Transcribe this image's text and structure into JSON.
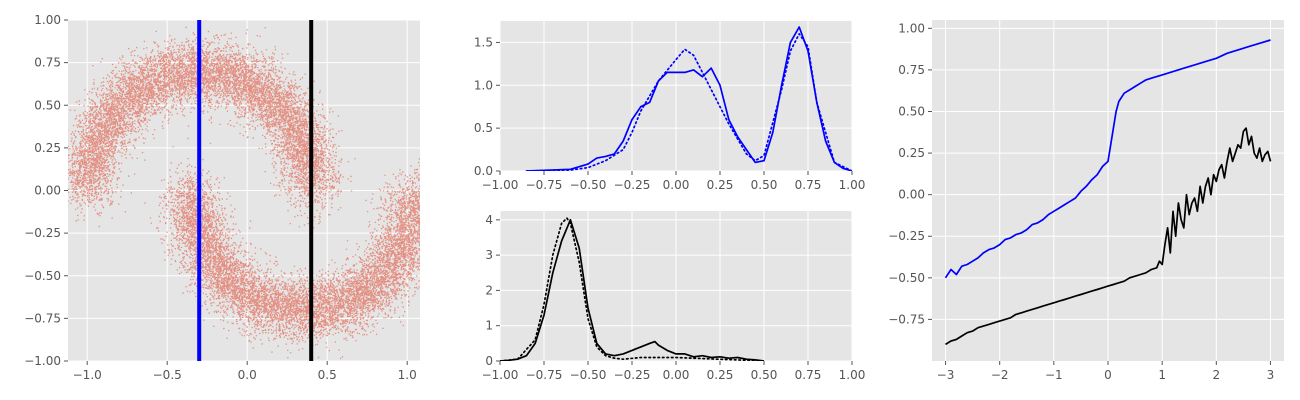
{
  "colors": {
    "panel_bg": "#e5e5e5",
    "grid": "#ffffff",
    "scatter": "#e24a33",
    "blue": "#0000ff",
    "black": "#000000",
    "tick_text": "#555555"
  },
  "chart_data": [
    {
      "id": "scatter",
      "type": "scatter",
      "xlim": [
        -1.12,
        1.08
      ],
      "ylim": [
        -1.0,
        1.0
      ],
      "xticks": [
        -1.0,
        -0.5,
        0.0,
        0.5,
        1.0
      ],
      "xtick_labels": [
        "−1.0",
        "−0.5",
        "0.0",
        "0.5",
        "1.0"
      ],
      "yticks": [
        -1.0,
        -0.75,
        -0.5,
        -0.25,
        0.0,
        0.25,
        0.5,
        0.75,
        1.0
      ],
      "ytick_labels": [
        "−1.00",
        "−0.75",
        "−0.50",
        "−0.25",
        "0.00",
        "0.25",
        "0.50",
        "0.75",
        "1.00"
      ],
      "grid": true,
      "description_shape": "two interleaved half-moons",
      "moons": [
        {
          "center": [
            -0.3,
            0.0
          ],
          "radius": 0.7,
          "arc": "upper",
          "noise": 0.09
        },
        {
          "center": [
            0.35,
            0.0
          ],
          "radius": 0.7,
          "arc": "lower",
          "noise": 0.09
        }
      ],
      "vlines": [
        {
          "x": -0.3,
          "color": "#0000ff"
        },
        {
          "x": 0.4,
          "color": "#000000"
        }
      ]
    },
    {
      "id": "density-top",
      "type": "line",
      "xlim": [
        -1.0,
        1.0
      ],
      "ylim": [
        0,
        1.75
      ],
      "xticks": [
        -1.0,
        -0.75,
        -0.5,
        -0.25,
        0.0,
        0.25,
        0.5,
        0.75,
        1.0
      ],
      "xtick_labels": [
        "−1.00",
        "−0.75",
        "−0.50",
        "−0.25",
        "0.00",
        "0.25",
        "0.50",
        "0.75",
        "1.00"
      ],
      "yticks": [
        0.0,
        0.5,
        1.0,
        1.5
      ],
      "ytick_labels": [
        "0.0",
        "0.5",
        "1.0",
        "1.5"
      ],
      "grid": true,
      "series": [
        {
          "style": "solid",
          "color": "#0000ff",
          "x": [
            -0.85,
            -0.6,
            -0.5,
            -0.45,
            -0.4,
            -0.35,
            -0.3,
            -0.25,
            -0.2,
            -0.15,
            -0.1,
            -0.05,
            0.0,
            0.05,
            0.1,
            0.15,
            0.2,
            0.25,
            0.3,
            0.35,
            0.4,
            0.45,
            0.5,
            0.55,
            0.6,
            0.65,
            0.7,
            0.75,
            0.8,
            0.85,
            0.9,
            0.95,
            1.0
          ],
          "y": [
            0.0,
            0.02,
            0.08,
            0.15,
            0.17,
            0.2,
            0.35,
            0.6,
            0.75,
            0.8,
            1.05,
            1.15,
            1.15,
            1.15,
            1.18,
            1.1,
            1.2,
            1.0,
            0.6,
            0.4,
            0.25,
            0.1,
            0.12,
            0.45,
            1.0,
            1.5,
            1.68,
            1.4,
            0.8,
            0.35,
            0.1,
            0.03,
            0.0
          ]
        },
        {
          "style": "dotted",
          "color": "#0000ff",
          "x": [
            -0.85,
            -0.6,
            -0.5,
            -0.4,
            -0.3,
            -0.25,
            -0.2,
            -0.1,
            0.0,
            0.05,
            0.1,
            0.15,
            0.2,
            0.3,
            0.4,
            0.45,
            0.5,
            0.6,
            0.65,
            0.7,
            0.75,
            0.8,
            0.9,
            1.0
          ],
          "y": [
            0.0,
            0.01,
            0.04,
            0.12,
            0.25,
            0.45,
            0.7,
            1.05,
            1.3,
            1.42,
            1.35,
            1.15,
            0.95,
            0.55,
            0.2,
            0.12,
            0.18,
            0.95,
            1.4,
            1.6,
            1.45,
            0.8,
            0.1,
            0.0
          ]
        }
      ]
    },
    {
      "id": "density-bottom",
      "type": "line",
      "xlim": [
        -1.0,
        1.0
      ],
      "ylim": [
        0,
        4.25
      ],
      "xticks": [
        -1.0,
        -0.75,
        -0.5,
        -0.25,
        0.0,
        0.25,
        0.5,
        0.75,
        1.0
      ],
      "xtick_labels": [
        "−1.00",
        "−0.75",
        "−0.50",
        "−0.25",
        "0.00",
        "0.25",
        "0.50",
        "0.75",
        "1.00"
      ],
      "yticks": [
        0,
        1,
        2,
        3,
        4
      ],
      "ytick_labels": [
        "0",
        "1",
        "2",
        "3",
        "4"
      ],
      "grid": true,
      "series": [
        {
          "style": "solid",
          "color": "#000000",
          "x": [
            -1.0,
            -0.95,
            -0.9,
            -0.85,
            -0.8,
            -0.75,
            -0.7,
            -0.65,
            -0.6,
            -0.55,
            -0.5,
            -0.45,
            -0.4,
            -0.35,
            -0.3,
            -0.25,
            -0.2,
            -0.15,
            -0.12,
            -0.1,
            -0.05,
            0.0,
            0.05,
            0.1,
            0.15,
            0.2,
            0.25,
            0.3,
            0.35,
            0.4,
            0.45,
            0.5
          ],
          "y": [
            0.0,
            0.02,
            0.05,
            0.15,
            0.5,
            1.3,
            2.5,
            3.4,
            4.0,
            3.2,
            1.5,
            0.5,
            0.2,
            0.15,
            0.2,
            0.3,
            0.4,
            0.5,
            0.55,
            0.45,
            0.3,
            0.2,
            0.2,
            0.12,
            0.15,
            0.1,
            0.12,
            0.08,
            0.1,
            0.05,
            0.03,
            0.0
          ]
        },
        {
          "style": "dotted",
          "color": "#000000",
          "x": [
            -1.0,
            -0.9,
            -0.8,
            -0.75,
            -0.7,
            -0.65,
            -0.62,
            -0.6,
            -0.55,
            -0.5,
            -0.45,
            -0.4,
            -0.35,
            -0.3,
            -0.2,
            -0.1,
            0.0,
            0.1,
            0.2,
            0.3,
            0.4,
            0.5
          ],
          "y": [
            0.0,
            0.05,
            0.6,
            1.6,
            3.0,
            3.9,
            4.05,
            3.9,
            2.8,
            1.2,
            0.4,
            0.15,
            0.08,
            0.05,
            0.1,
            0.1,
            0.1,
            0.08,
            0.06,
            0.04,
            0.02,
            0.0
          ]
        }
      ]
    },
    {
      "id": "curves-right",
      "type": "line",
      "xlim": [
        -3.25,
        3.25
      ],
      "ylim": [
        -1.0,
        1.05
      ],
      "xticks": [
        -3,
        -2,
        -1,
        0,
        1,
        2,
        3
      ],
      "xtick_labels": [
        "−3",
        "−2",
        "−1",
        "0",
        "1",
        "2",
        "3"
      ],
      "yticks": [
        -0.75,
        -0.5,
        -0.25,
        0.0,
        0.25,
        0.5,
        0.75,
        1.0
      ],
      "ytick_labels": [
        "−0.75",
        "−0.50",
        "−0.25",
        "0.00",
        "0.25",
        "0.50",
        "0.75",
        "1.00"
      ],
      "grid": true,
      "series": [
        {
          "style": "solid",
          "color": "#0000ff",
          "x": [
            -3.0,
            -2.9,
            -2.8,
            -2.7,
            -2.6,
            -2.5,
            -2.4,
            -2.3,
            -2.2,
            -2.1,
            -2.0,
            -1.9,
            -1.8,
            -1.7,
            -1.6,
            -1.5,
            -1.4,
            -1.3,
            -1.2,
            -1.1,
            -1.0,
            -0.9,
            -0.8,
            -0.7,
            -0.6,
            -0.5,
            -0.4,
            -0.3,
            -0.2,
            -0.1,
            0.0,
            0.05,
            0.1,
            0.15,
            0.2,
            0.3,
            0.4,
            0.5,
            0.6,
            0.7,
            0.8,
            0.9,
            1.0,
            1.2,
            1.4,
            1.6,
            1.8,
            2.0,
            2.2,
            2.4,
            2.6,
            2.8,
            3.0
          ],
          "y": [
            -0.5,
            -0.45,
            -0.48,
            -0.43,
            -0.42,
            -0.4,
            -0.38,
            -0.35,
            -0.33,
            -0.32,
            -0.3,
            -0.27,
            -0.26,
            -0.24,
            -0.23,
            -0.21,
            -0.18,
            -0.17,
            -0.15,
            -0.12,
            -0.1,
            -0.08,
            -0.06,
            -0.04,
            -0.02,
            0.02,
            0.05,
            0.09,
            0.12,
            0.17,
            0.2,
            0.3,
            0.4,
            0.5,
            0.56,
            0.61,
            0.63,
            0.65,
            0.67,
            0.69,
            0.7,
            0.71,
            0.72,
            0.74,
            0.76,
            0.78,
            0.8,
            0.82,
            0.85,
            0.87,
            0.89,
            0.91,
            0.93
          ]
        },
        {
          "style": "solid",
          "color": "#000000",
          "x": [
            -3.0,
            -2.9,
            -2.8,
            -2.7,
            -2.6,
            -2.5,
            -2.4,
            -2.3,
            -2.2,
            -2.1,
            -2.0,
            -1.9,
            -1.8,
            -1.7,
            -1.6,
            -1.5,
            -1.4,
            -1.3,
            -1.2,
            -1.1,
            -1.0,
            -0.9,
            -0.8,
            -0.7,
            -0.6,
            -0.5,
            -0.4,
            -0.3,
            -0.2,
            -0.1,
            0.0,
            0.1,
            0.2,
            0.3,
            0.4,
            0.5,
            0.6,
            0.7,
            0.8,
            0.9,
            0.95,
            1.0,
            1.05,
            1.1,
            1.15,
            1.2,
            1.25,
            1.3,
            1.35,
            1.4,
            1.45,
            1.5,
            1.55,
            1.6,
            1.65,
            1.7,
            1.75,
            1.8,
            1.85,
            1.9,
            1.95,
            2.0,
            2.05,
            2.1,
            2.15,
            2.2,
            2.25,
            2.3,
            2.35,
            2.4,
            2.45,
            2.5,
            2.55,
            2.6,
            2.65,
            2.7,
            2.75,
            2.8,
            2.85,
            2.9,
            2.95,
            3.0
          ],
          "y": [
            -0.9,
            -0.88,
            -0.87,
            -0.85,
            -0.83,
            -0.82,
            -0.8,
            -0.79,
            -0.78,
            -0.77,
            -0.76,
            -0.75,
            -0.74,
            -0.72,
            -0.71,
            -0.7,
            -0.69,
            -0.68,
            -0.67,
            -0.66,
            -0.65,
            -0.64,
            -0.63,
            -0.62,
            -0.61,
            -0.6,
            -0.59,
            -0.58,
            -0.57,
            -0.56,
            -0.55,
            -0.54,
            -0.53,
            -0.52,
            -0.5,
            -0.49,
            -0.48,
            -0.47,
            -0.45,
            -0.44,
            -0.4,
            -0.42,
            -0.3,
            -0.2,
            -0.35,
            -0.1,
            -0.25,
            -0.05,
            -0.15,
            -0.2,
            0.0,
            -0.12,
            -0.05,
            -0.02,
            -0.1,
            0.05,
            -0.05,
            0.05,
            0.1,
            0.0,
            0.12,
            0.08,
            0.15,
            0.18,
            0.1,
            0.2,
            0.28,
            0.2,
            0.25,
            0.3,
            0.28,
            0.38,
            0.4,
            0.3,
            0.35,
            0.25,
            0.22,
            0.28,
            0.2,
            0.24,
            0.26,
            0.2
          ]
        }
      ]
    }
  ]
}
